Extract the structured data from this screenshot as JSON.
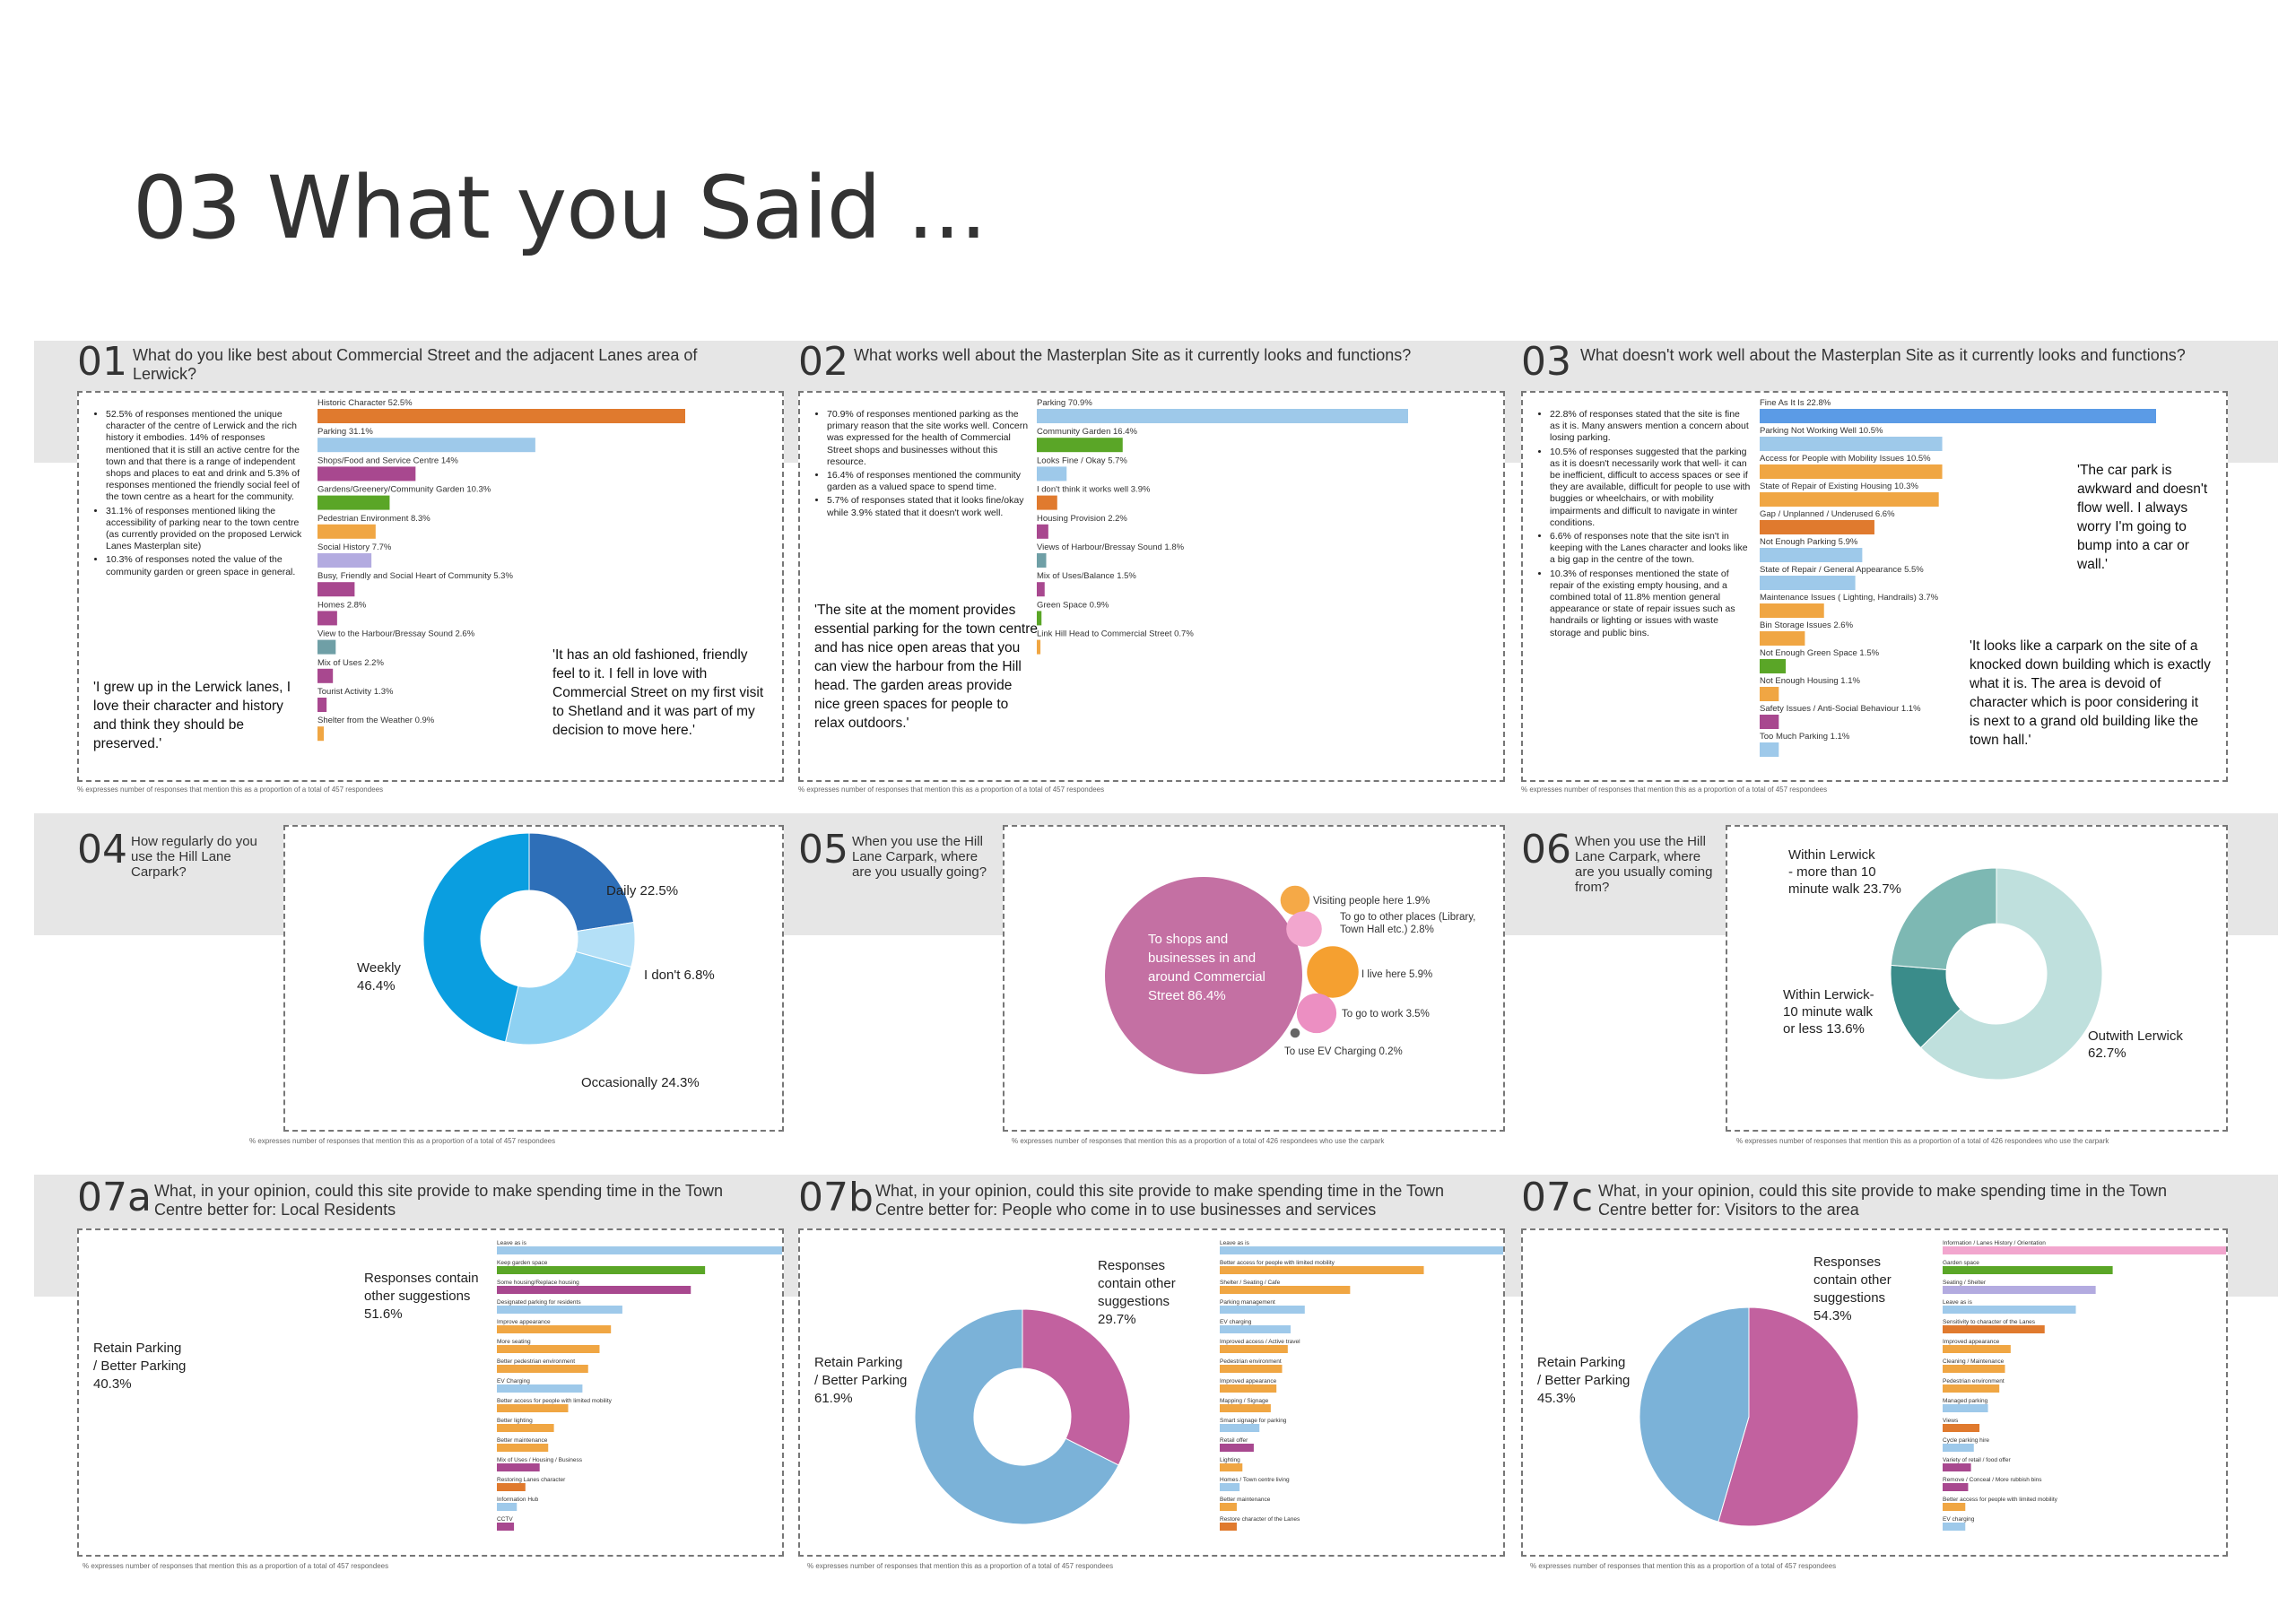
{
  "title": "03 What you Said ...",
  "footnote_457": "% expresses number of responses that mention this as a proportion of a total of 457 respondees",
  "footnote_426": "% expresses number of responses that mention this as a proportion of a total of 426 respondees who use the carpark",
  "q01": {
    "num": "01",
    "question": "What do you like best about Commercial Street and the adjacent Lanes area of Lerwick?",
    "bullets": [
      "52.5% of responses mentioned the unique character of the centre of Lerwick and the rich history it embodies. 14% of responses mentioned that it is still an active centre for the town and that there is a range of independent shops and places to eat and drink and 5.3% of responses mentioned the friendly social feel of the town centre as a heart for the community.",
      "31.1% of responses mentioned liking the accessibility of parking near to the town centre (as currently provided on the proposed Lerwick Lanes Masterplan site)",
      "10.3% of responses noted the value of the community garden or green space in general."
    ],
    "quote1": "'I grew up in the Lerwick lanes, I love their character and history and think they should be preserved.'",
    "quote2": "'It has an old fashioned, friendly feel to it. I fell in love with Commercial Street on my first visit to Shetland and it was part of my decision to move here.'"
  },
  "q02": {
    "num": "02",
    "question": "What works well about the Masterplan Site as it currently looks and functions?",
    "bullets": [
      "70.9% of responses mentioned parking as the primary reason that the site works well. Concern was expressed for the health of Commercial Street shops and businesses without this resource.",
      "16.4% of responses mentioned the community garden as a valued space to spend time.",
      "5.7% of responses stated that it looks fine/okay while 3.9% stated that it doesn't work well."
    ],
    "quote1": "'The site at the moment provides essential parking for the town centre and has nice open areas that you can view the harbour from the Hill head. The garden areas provide nice green spaces for people to relax outdoors.'"
  },
  "q03": {
    "num": "03",
    "question": "What doesn't work well about the Masterplan Site as it currently looks and functions?",
    "bullets": [
      "22.8% of responses stated that the site is fine as it is. Many answers mention a concern about losing parking.",
      "10.5% of responses suggested that the parking as it is doesn't necessarily work that well- it can be inefficient, difficult to access spaces or see if they are available, difficult for people to use with buggies or wheelchairs, or with mobility impairments and difficult to navigate in winter conditions.",
      "6.6% of responses note that the site isn't in keeping with the Lanes character and looks like a big gap in the centre of the town.",
      "10.3% of responses mentioned the state of repair of the existing empty housing, and a combined total of 11.8% mention general appearance or state of repair issues such as handrails or lighting or issues with waste storage and public bins."
    ],
    "quote1": "'The car park is awkward and doesn't flow well. I always worry I'm going to bump into a car or wall.'",
    "quote2": "'It looks like a carpark on the site of a knocked down building which is exactly what it is. The area is devoid of character which is poor considering it is next to a grand old building like the town hall.'"
  },
  "q04": {
    "num": "04",
    "question": "How regularly do you use the Hill Lane Carpark?"
  },
  "q05": {
    "num": "05",
    "question": "When you use the Hill Lane Carpark, where are you usually going?"
  },
  "q06": {
    "num": "06",
    "question": "When you use the Hill Lane Carpark, where are you usually coming from?"
  },
  "q07a": {
    "num": "07a",
    "question": "What, in your opinion, could this site provide to make spending time in the Town Centre better for: Local Residents"
  },
  "q07b": {
    "num": "07b",
    "question": "What, in your opinion, could this site provide to make spending time in the Town Centre better for: People who come in to use businesses and services"
  },
  "q07c": {
    "num": "07c",
    "question": "What, in your opinion, could this site provide to make spending time in the Town Centre better for: Visitors to the area"
  },
  "chart_data": [
    {
      "id": "c01",
      "type": "bar",
      "orientation": "horizontal",
      "xlim": [
        0,
        52.5
      ],
      "categories": [
        "Historic Character",
        "Parking",
        "Shops/Food and Service Centre",
        "Gardens/Greenery/Community Garden",
        "Pedestrian Environment",
        "Social History",
        "Busy, Friendly and Social Heart of Community",
        "Homes",
        "View to the Harbour/Bressay Sound",
        "Mix of Uses",
        "Tourist Activity",
        "Shelter from the Weather"
      ],
      "values": [
        52.5,
        31.1,
        14,
        10.3,
        8.3,
        7.7,
        5.3,
        2.8,
        2.6,
        2.2,
        1.3,
        0.9
      ],
      "labels": [
        "52.5%",
        "31.1%",
        "14%",
        "10.3%",
        "8.3%",
        "7.7%",
        "5.3%",
        "2.8%",
        "2.6%",
        "2.2%",
        "1.3%",
        "0.9%"
      ],
      "colors": [
        "#e07a2e",
        "#9ec9ea",
        "#a8488f",
        "#5aa627",
        "#f0a643",
        "#b3abe0",
        "#a8488f",
        "#a8488f",
        "#6f9fa6",
        "#a8488f",
        "#a8488f",
        "#f0a643"
      ]
    },
    {
      "id": "c02",
      "type": "bar",
      "orientation": "horizontal",
      "xlim": [
        0,
        70.9
      ],
      "categories": [
        "Parking",
        "Community Garden",
        "Looks Fine / Okay",
        "I don't think it works well",
        "Housing Provision",
        "Views of Harbour/Bressay Sound",
        "Mix of Uses/Balance",
        "Green Space",
        "Link Hill Head to Commercial Street"
      ],
      "values": [
        70.9,
        16.4,
        5.7,
        3.9,
        2.2,
        1.8,
        1.5,
        0.9,
        0.7
      ],
      "labels": [
        "70.9%",
        "16.4%",
        "5.7%",
        "3.9%",
        "2.2%",
        "1.8%",
        "1.5%",
        "0.9%",
        "0.7%"
      ],
      "colors": [
        "#9ec9ea",
        "#5aa627",
        "#9ec9ea",
        "#e07a2e",
        "#a8488f",
        "#6f9fa6",
        "#a8488f",
        "#5aa627",
        "#f0a643"
      ]
    },
    {
      "id": "c03",
      "type": "bar",
      "orientation": "horizontal",
      "xlim": [
        0,
        22.8
      ],
      "categories": [
        "Fine As It Is",
        "Parking Not Working Well",
        "Access for People with Mobility Issues",
        "State of Repair of Existing Housing",
        "Gap / Unplanned / Underused",
        "Not Enough Parking",
        "State of Repair / General Appearance",
        "Maintenance Issues ( Lighting, Handrails)",
        "Bin Storage Issues",
        "Not Enough Green Space",
        "Not Enough Housing",
        "Safety Issues / Anti-Social Behaviour",
        "Too Much Parking"
      ],
      "values": [
        22.8,
        10.5,
        10.5,
        10.3,
        6.6,
        5.9,
        5.5,
        3.7,
        2.6,
        1.5,
        1.1,
        1.1,
        1.1
      ],
      "labels": [
        "22.8%",
        "10.5%",
        "10.5%",
        "10.3%",
        "6.6%",
        "5.9%",
        "5.5%",
        "3.7%",
        "2.6%",
        "1.5%",
        "1.1%",
        "1.1%",
        "1.1%"
      ],
      "colors": [
        "#5b9be6",
        "#9ec9ea",
        "#f0a643",
        "#f0a643",
        "#e07a2e",
        "#9ec9ea",
        "#9ec9ea",
        "#f0a643",
        "#f0a643",
        "#5aa627",
        "#f0a643",
        "#a8488f",
        "#9ec9ea"
      ]
    },
    {
      "id": "c04",
      "type": "pie",
      "donut": true,
      "categories": [
        "Daily",
        "I don't",
        "Occasionally",
        "Weekly"
      ],
      "values": [
        22.5,
        6.8,
        24.3,
        46.4
      ],
      "labels": [
        "Daily 22.5%",
        "I don't 6.8%",
        "Occasionally 24.3%",
        "Weekly\n46.4%"
      ],
      "colors": [
        "#2e6fb8",
        "#b4e0f7",
        "#8ed1f2",
        "#0a9ee0"
      ]
    },
    {
      "id": "c05",
      "type": "bubble",
      "categories": [
        "To shops and businesses in and around Commercial Street",
        "Visiting people here",
        "To go to other places (Library, Town Hall etc.)",
        "I live here",
        "To go to work",
        "To use EV Charging"
      ],
      "values": [
        86.4,
        1.9,
        2.8,
        5.9,
        3.5,
        0.2
      ],
      "labels": [
        "To shops and businesses in and around Commercial Street 86.4%",
        "Visiting people here 1.9%",
        "To go to other places (Library, Town Hall etc.) 2.8%",
        "I live here 5.9%",
        "To go to work 3.5%",
        "To use EV Charging 0.2%"
      ],
      "colors": [
        "#c470a3",
        "#f5a947",
        "#f2a6ce",
        "#f5a030",
        "#ec8fc2",
        "#666666"
      ]
    },
    {
      "id": "c06",
      "type": "pie",
      "donut": true,
      "categories": [
        "Outwith Lerwick",
        "Within Lerwick- 10 minute walk or less",
        "Within Lerwick - more than 10 minute walk"
      ],
      "values": [
        62.7,
        13.6,
        23.7
      ],
      "labels": [
        "Outwith Lerwick\n62.7%",
        "Within Lerwick-\n10 minute walk\nor less 13.6%",
        "Within Lerwick\n- more than 10\nminute walk 23.7%"
      ],
      "colors": [
        "#bfe0dd",
        "#3a8c8a",
        "#7db8b3"
      ]
    },
    {
      "id": "c07a",
      "type": "pie",
      "donut": false,
      "categories": [
        "Responses contain other suggestions",
        "Retain Parking / Better Parking"
      ],
      "values": [
        51.6,
        40.3
      ],
      "labels": [
        "Responses contain\nother suggestions\n51.6%",
        "Retain Parking\n/ Better Parking\n40.3%"
      ],
      "bars": {
        "categories": [
          "Leave as is",
          "Keep garden space",
          "Some housing/Replace housing",
          "Designated parking for residents",
          "Improve appearance",
          "More seating",
          "Better pedestrian environment",
          "EV Charging",
          "Better access for people with limited mobility",
          "Better lighting",
          "Better maintenance",
          "Mix of Uses / Housing / Business",
          "Restoring Lanes character",
          "Information Hub",
          "CCTV"
        ],
        "values": [
          100,
          73,
          68,
          44,
          40,
          36,
          32,
          30,
          25,
          20,
          18,
          15,
          10,
          7,
          6
        ],
        "colors": [
          "#9ec9ea",
          "#5aa627",
          "#a8488f",
          "#9ec9ea",
          "#f0a643",
          "#f0a643",
          "#f0a643",
          "#9ec9ea",
          "#f0a643",
          "#f0a643",
          "#f0a643",
          "#a8488f",
          "#e07a2e",
          "#9ec9ea",
          "#a8488f"
        ]
      }
    },
    {
      "id": "c07b",
      "type": "pie",
      "donut": true,
      "categories": [
        "Responses contain other suggestions",
        "Retain Parking / Better Parking"
      ],
      "values": [
        29.7,
        61.9
      ],
      "labels": [
        "Responses\ncontain other\nsuggestions\n29.7%",
        "Retain Parking\n/ Better Parking\n61.9%"
      ],
      "colors": [
        "#c2619f",
        "#7bb2d8"
      ],
      "bars": {
        "categories": [
          "Leave as is",
          "Better access for people with limited mobility",
          "Shelter / Seating / Cafe",
          "Parking management",
          "EV charging",
          "Improved access / Active travel",
          "Pedestrian environment",
          "Improved appearance",
          "Mapping / Signage",
          "Smart signage for parking",
          "Retail offer",
          "Lighting",
          "Homes / Town centre living",
          "Better maintenance",
          "Restore character of the Lanes"
        ],
        "values": [
          100,
          72,
          46,
          30,
          25,
          24,
          22,
          20,
          18,
          14,
          12,
          8,
          7,
          6,
          6
        ],
        "colors": [
          "#9ec9ea",
          "#f0a643",
          "#f0a643",
          "#9ec9ea",
          "#9ec9ea",
          "#f0a643",
          "#f0a643",
          "#f0a643",
          "#f0a643",
          "#9ec9ea",
          "#a8488f",
          "#f0a643",
          "#9ec9ea",
          "#f0a643",
          "#e07a2e"
        ]
      }
    },
    {
      "id": "c07c",
      "type": "pie",
      "donut": false,
      "categories": [
        "Responses contain other suggestions",
        "Retain Parking / Better Parking"
      ],
      "values": [
        54.3,
        45.3
      ],
      "labels": [
        "Responses\ncontain other\nsuggestions\n54.3%",
        "Retain Parking\n/ Better Parking\n45.3%"
      ],
      "colors": [
        "#c2619f",
        "#7bb2d8"
      ],
      "bars": {
        "categories": [
          "Information / Lanes History / Orientation",
          "Garden space",
          "Seating / Shelter",
          "Leave as is",
          "Sensitivity to character of the Lanes",
          "Improved appearance",
          "Cleaning / Maintenance",
          "Pedestrian environment",
          "Managed parking",
          "Views",
          "Cycle parking hire",
          "Variety of retail / food offer",
          "Remove / Conceal / More rubbish bins",
          "Better access for people with limited mobility",
          "EV charging"
        ],
        "values": [
          100,
          60,
          54,
          47,
          36,
          24,
          22,
          20,
          16,
          13,
          11,
          10,
          9,
          8,
          8
        ],
        "colors": [
          "#f2a6ce",
          "#5aa627",
          "#b3abe0",
          "#9ec9ea",
          "#e07a2e",
          "#f0a643",
          "#f0a643",
          "#f0a643",
          "#9ec9ea",
          "#e07a2e",
          "#9ec9ea",
          "#a8488f",
          "#a8488f",
          "#f0a643",
          "#9ec9ea"
        ]
      }
    }
  ]
}
